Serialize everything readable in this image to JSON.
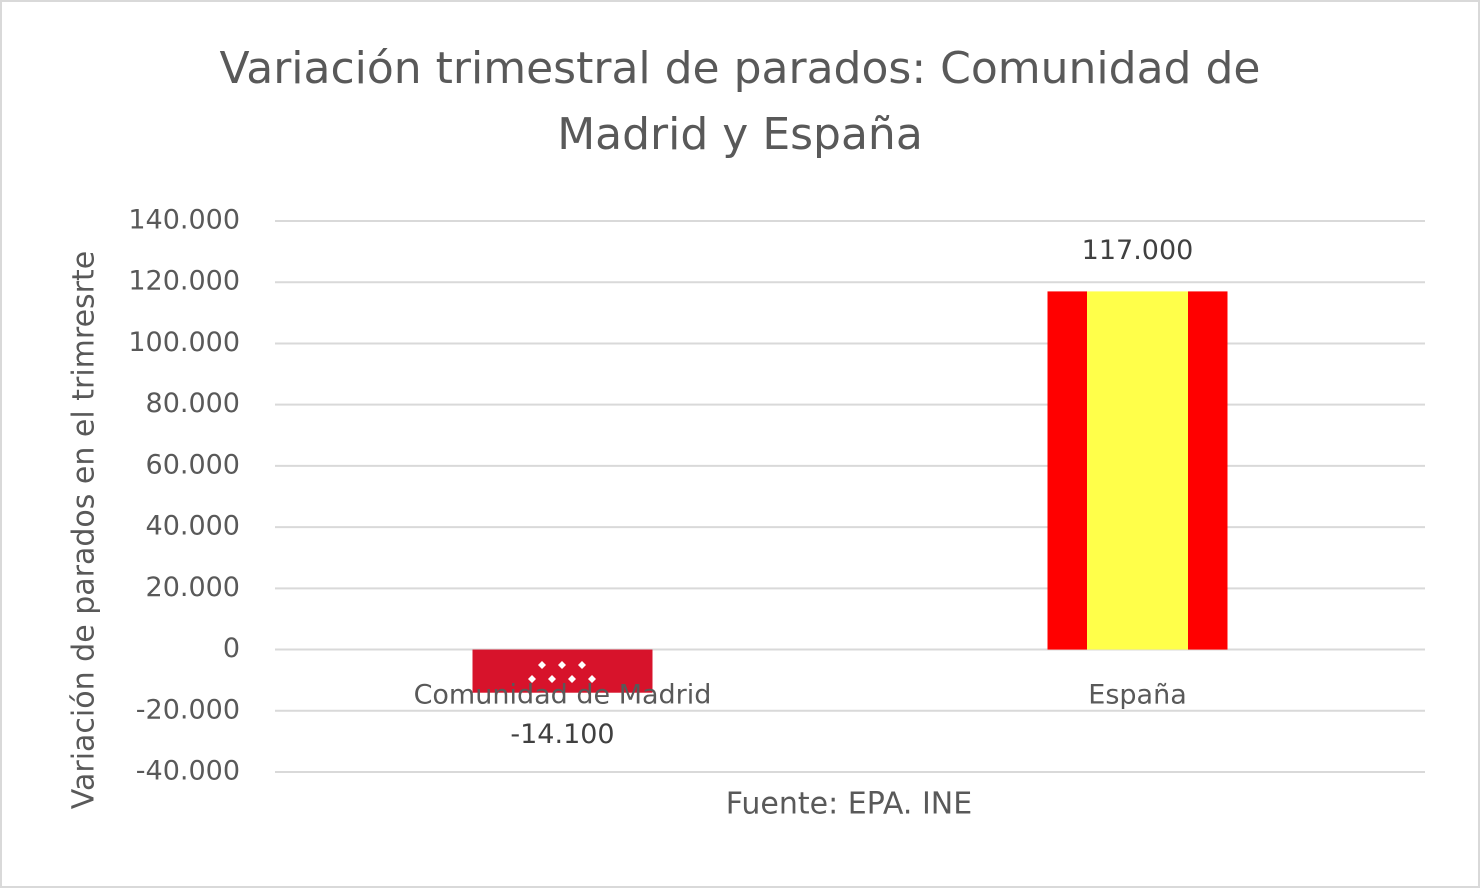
{
  "chart_data": {
    "type": "bar",
    "title": "Variación trimestral de parados: Comunidad de Madrid y España",
    "x_label": "Fuente: EPA. INE",
    "y_label": "Variación de parados en el trimresrte",
    "categories": [
      "Comunidad de Madrid",
      "España"
    ],
    "values": [
      -14100,
      117000
    ],
    "value_labels": [
      "-14.100",
      "117.000"
    ],
    "ylim": [
      -40000,
      140000
    ],
    "yticks": [
      {
        "value": -40000,
        "label": "-40.000"
      },
      {
        "value": -20000,
        "label": "-20.000"
      },
      0,
      {
        "value": 20000,
        "label": "20.000"
      },
      {
        "value": 40000,
        "label": "40.000"
      },
      {
        "value": 60000,
        "label": "60.000"
      },
      {
        "value": 80000,
        "label": "80.000"
      },
      {
        "value": 100000,
        "label": "100.000"
      },
      {
        "value": 120000,
        "label": "120.000"
      },
      {
        "value": 140000,
        "label": "140.000"
      }
    ],
    "grid": true
  }
}
